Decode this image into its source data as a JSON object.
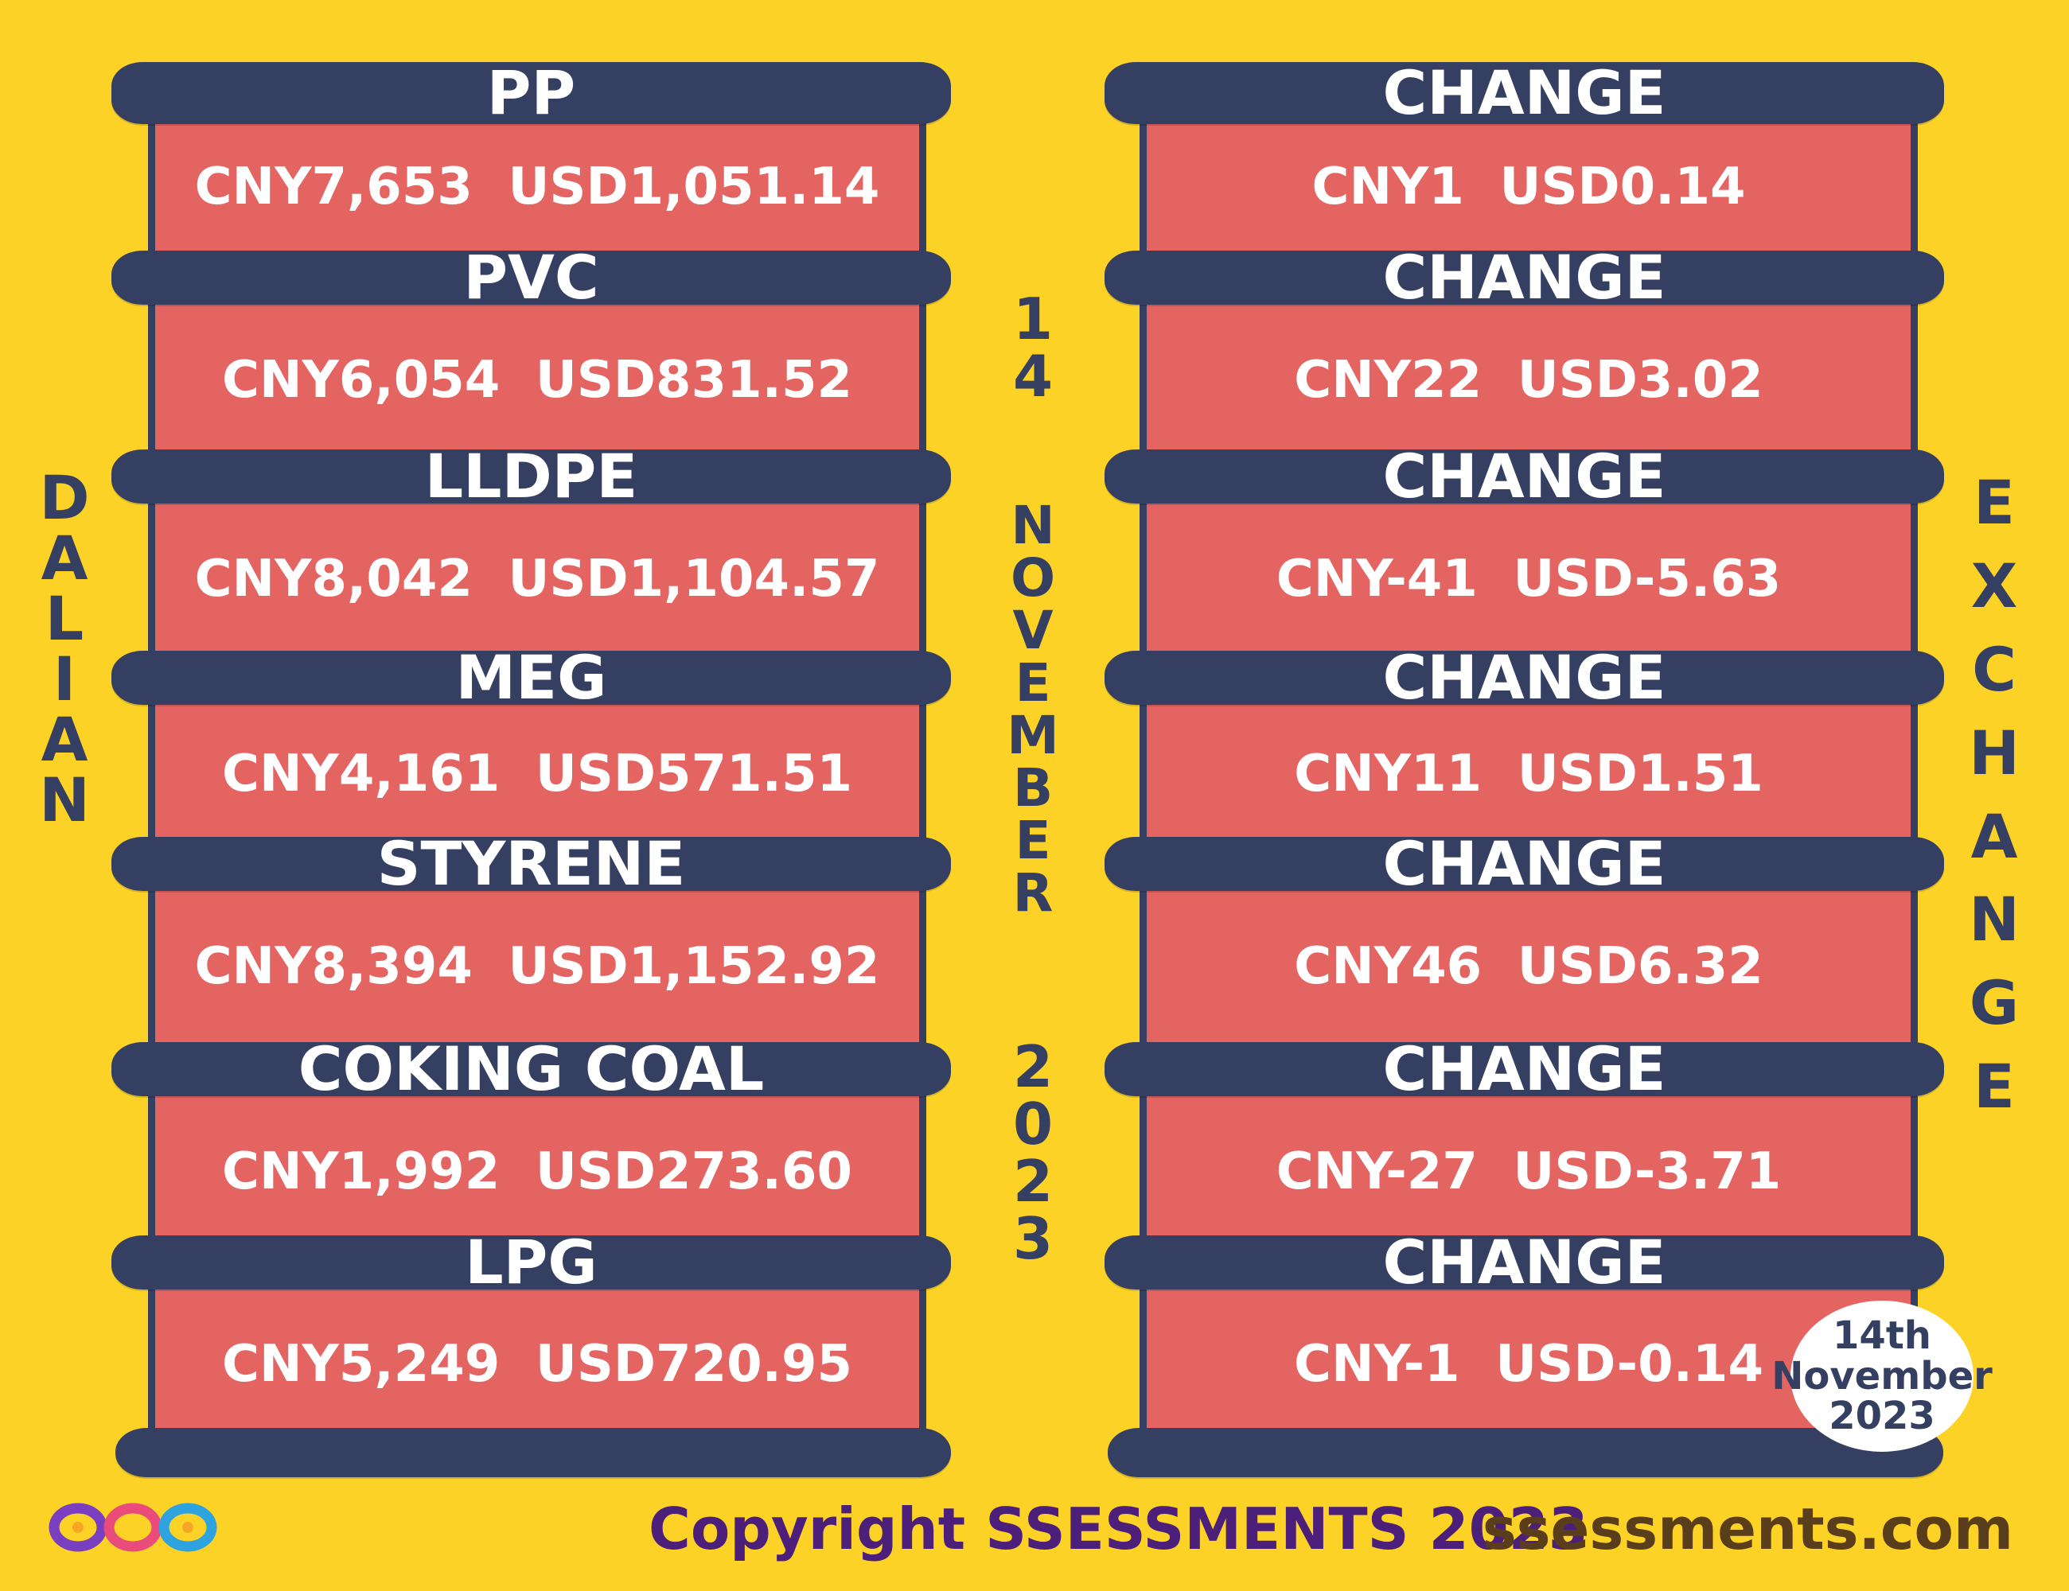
{
  "left_title": "DALIAN",
  "right_title": "EXCHANGE",
  "center_date_day": "14",
  "center_date_month": "NOVEMBER",
  "center_date_year": "2023",
  "products": [
    {
      "name": "PP",
      "price": "CNY7,653  USD1,051.14",
      "change_label": "CHANGE",
      "change": "CNY1  USD0.14"
    },
    {
      "name": "PVC",
      "price": "CNY6,054  USD831.52",
      "change_label": "CHANGE",
      "change": "CNY22  USD3.02"
    },
    {
      "name": "LLDPE",
      "price": "CNY8,042  USD1,104.57",
      "change_label": "CHANGE",
      "change": "CNY-41  USD-5.63"
    },
    {
      "name": "MEG",
      "price": "CNY4,161  USD571.51",
      "change_label": "CHANGE",
      "change": "CNY11  USD1.51"
    },
    {
      "name": "STYRENE",
      "price": "CNY8,394  USD1,152.92",
      "change_label": "CHANGE",
      "change": "CNY46  USD6.32"
    },
    {
      "name": "COKING COAL",
      "price": "CNY1,992  USD273.60",
      "change_label": "CHANGE",
      "change": "CNY-27  USD-3.71"
    },
    {
      "name": "LPG",
      "price": "CNY5,249  USD720.95",
      "change_label": "CHANGE",
      "change": "CNY-1  USD-0.14"
    }
  ],
  "badge": {
    "line1": "14th",
    "line2": "November",
    "line3": "2023"
  },
  "footer": {
    "copyright": "Copyright SSESSMENTS 2023",
    "site": "ssessments.com"
  },
  "colors": {
    "background": "#fdd227",
    "bar": "#353f62",
    "panel": "#e46462",
    "text": "#ffffff"
  },
  "logo_icon": "infinity-rings-logo-icon"
}
